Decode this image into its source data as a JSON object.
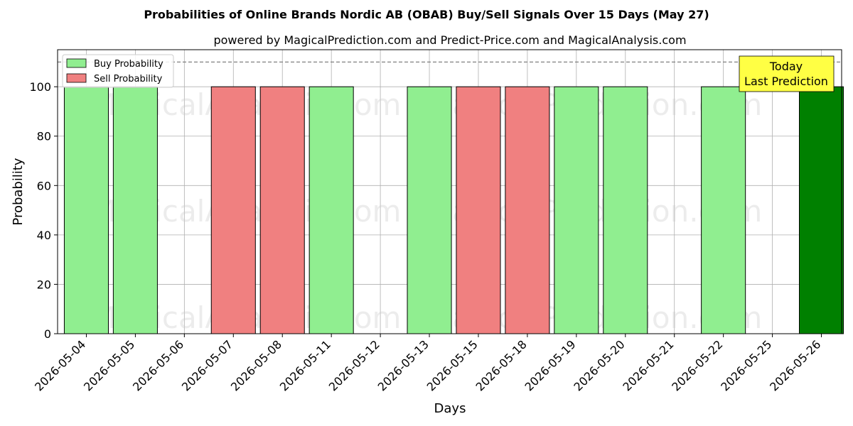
{
  "chart_data": {
    "type": "bar",
    "title": "Probabilities of Online Brands Nordic AB (OBAB) Buy/Sell Signals Over 15 Days (May 27)",
    "subtitle": "powered by MagicalPrediction.com and Predict-Price.com and MagicalAnalysis.com",
    "xlabel": "Days",
    "ylabel": "Probability",
    "ylim": [
      0,
      115
    ],
    "yticks": [
      0,
      20,
      40,
      60,
      80,
      100
    ],
    "grid": true,
    "legend_position": "top-left",
    "reference_line": 110,
    "categories": [
      "2026-05-04",
      "2026-05-05",
      "2026-05-06",
      "2026-05-07",
      "2026-05-08",
      "2026-05-11",
      "2026-05-12",
      "2026-05-13",
      "2026-05-15",
      "2026-05-18",
      "2026-05-19",
      "2026-05-20",
      "2026-05-21",
      "2026-05-22",
      "2026-05-25",
      "2026-05-26"
    ],
    "series": [
      {
        "name": "Buy Probability",
        "color": "#90ee90",
        "values": [
          100,
          100,
          null,
          null,
          null,
          100,
          null,
          100,
          null,
          null,
          100,
          100,
          null,
          100,
          null,
          100
        ]
      },
      {
        "name": "Sell Probability",
        "color": "#f08080",
        "values": [
          null,
          null,
          null,
          100,
          100,
          null,
          null,
          null,
          100,
          100,
          null,
          null,
          null,
          null,
          null,
          null
        ]
      }
    ],
    "highlight": {
      "category": "2026-05-26",
      "color": "#008000"
    },
    "annotation": {
      "line1": "Today",
      "line2": "Last Prediction",
      "color": "#ffff44"
    },
    "watermarks": [
      "MagicalAnalysis.com",
      "MagicalPrediction.com"
    ]
  }
}
